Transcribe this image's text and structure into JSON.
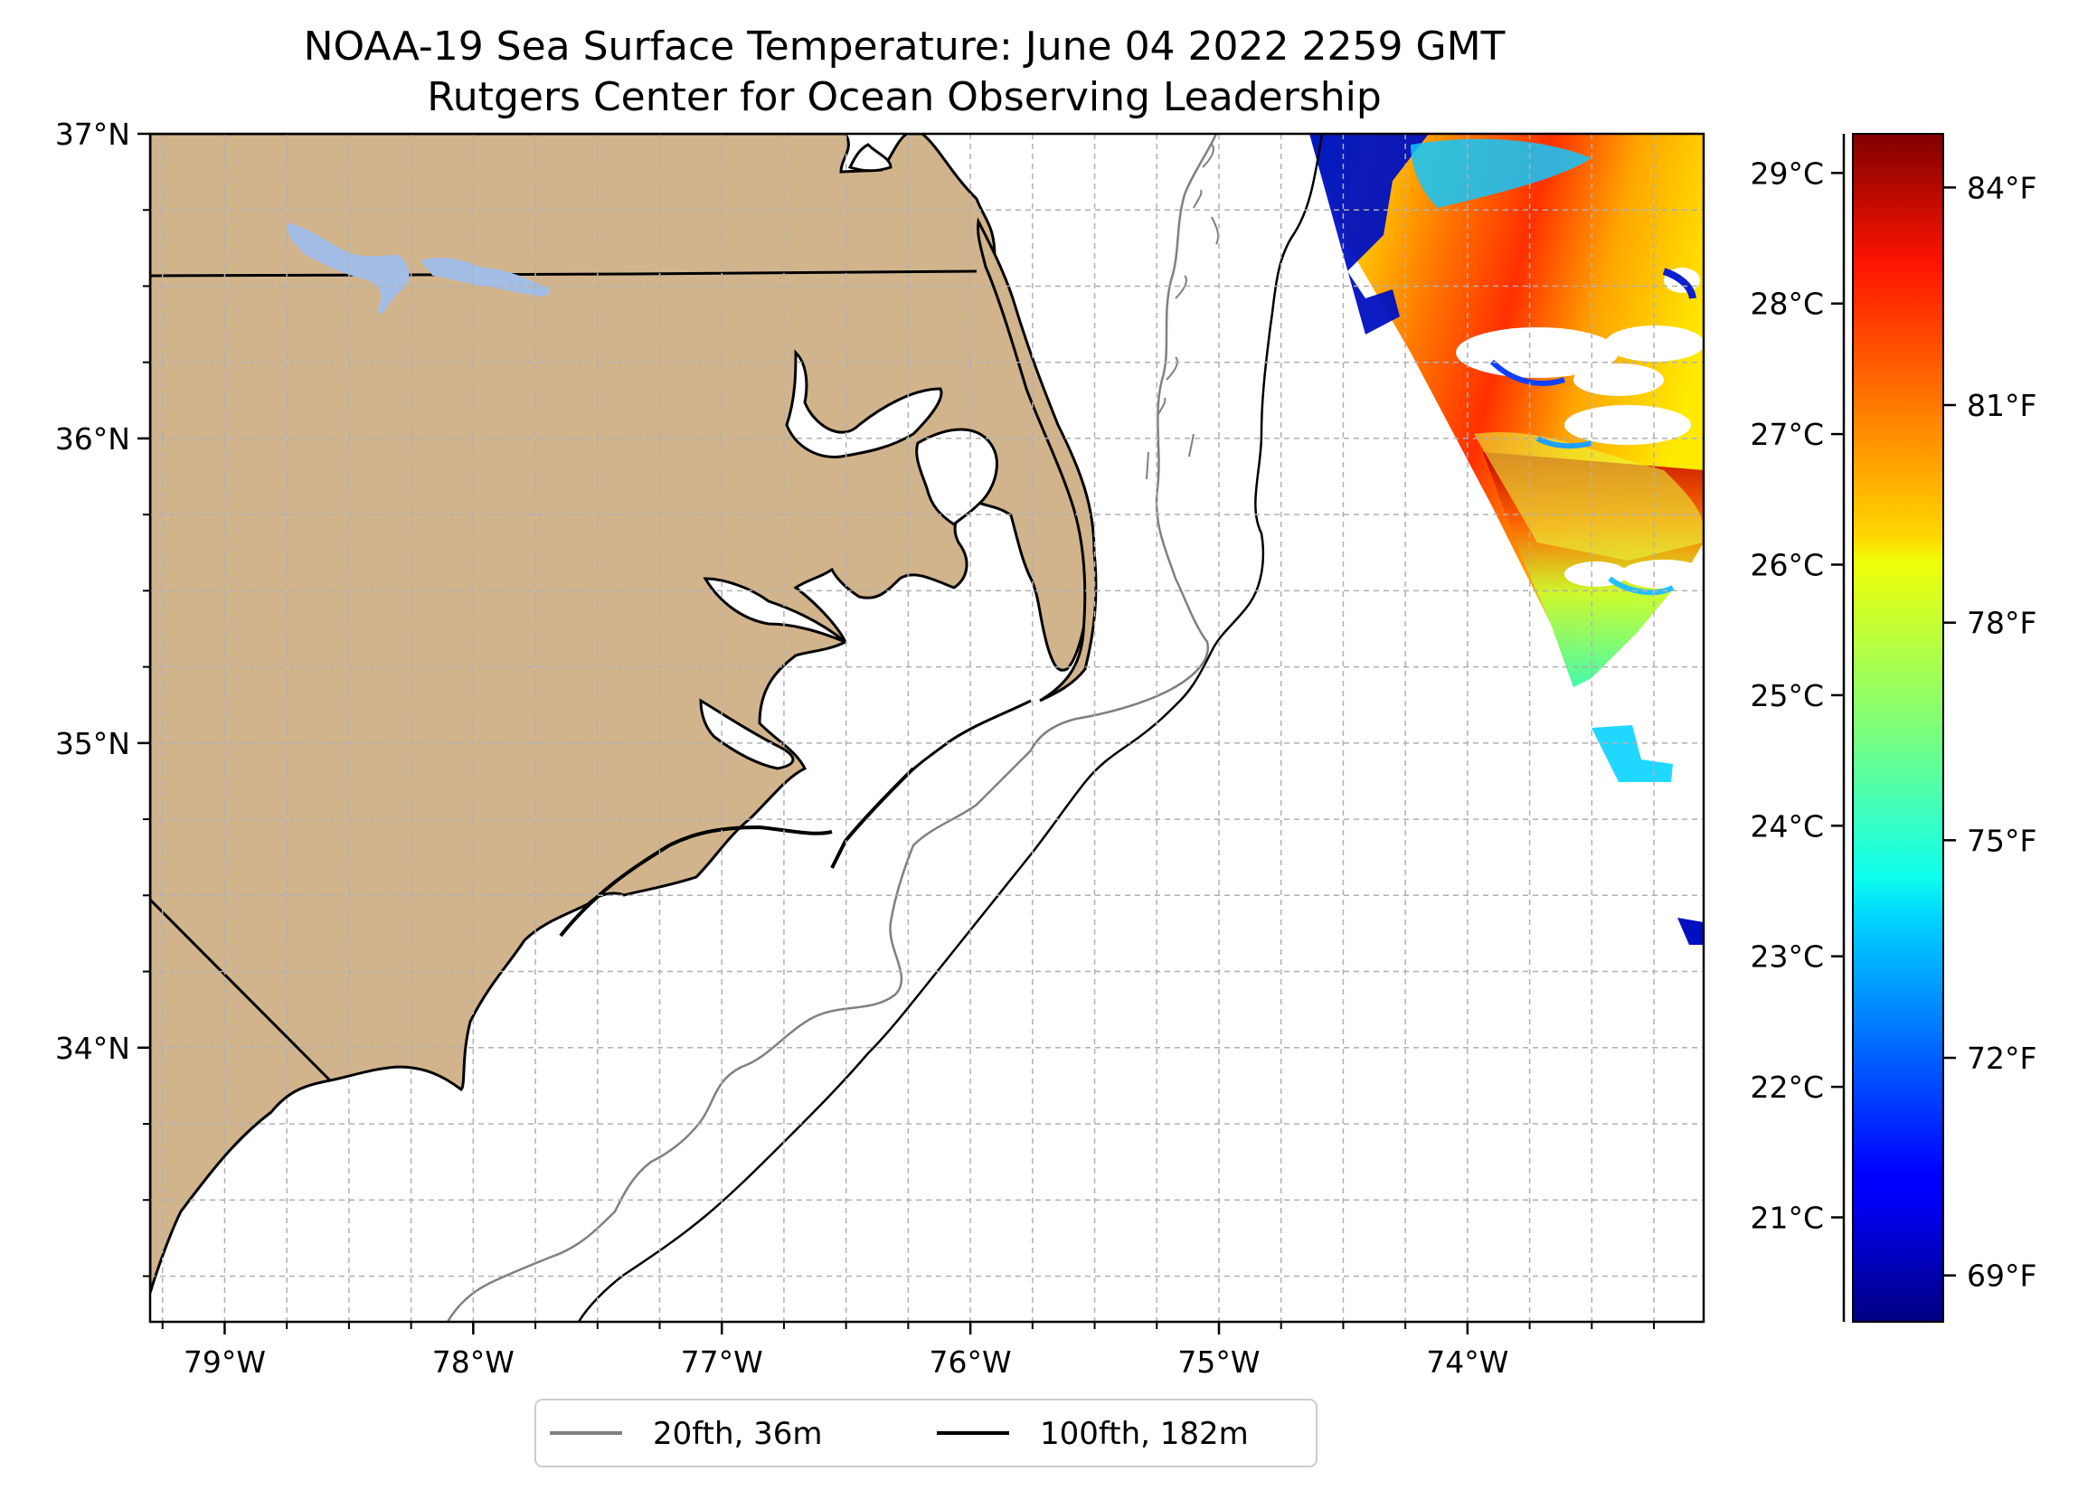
{
  "title": {
    "line1": "NOAA-19 Sea Surface Temperature: June 04 2022 2259 GMT",
    "line2": "Rutgers Center for Ocean Observing Leadership"
  },
  "map": {
    "lon_range": [
      -79.3,
      -73.05
    ],
    "lat_range": [
      33.1,
      37.0
    ],
    "lon_ticks": [
      {
        "value": -79,
        "label": "79°W"
      },
      {
        "value": -78,
        "label": "78°W"
      },
      {
        "value": -77,
        "label": "77°W"
      },
      {
        "value": -76,
        "label": "76°W"
      },
      {
        "value": -75,
        "label": "75°W"
      },
      {
        "value": -74,
        "label": "74°W"
      }
    ],
    "lat_ticks": [
      {
        "value": 37,
        "label": "37°N"
      },
      {
        "value": 36,
        "label": "36°N"
      },
      {
        "value": 35,
        "label": "35°N"
      },
      {
        "value": 34,
        "label": "34°N"
      }
    ],
    "grid": true,
    "land_color": "#d2b48c",
    "lake_color": "#a4bde6"
  },
  "legend": {
    "placement": "bottom-center",
    "items": [
      {
        "label": "20fth, 36m",
        "color": "#808080"
      },
      {
        "label": "100fth, 182m",
        "color": "#000000"
      }
    ]
  },
  "colorbar": {
    "colormap": "jet",
    "range_c": [
      20.2,
      29.3
    ],
    "celsius_ticks": [
      {
        "value": 29,
        "label": "29°C"
      },
      {
        "value": 28,
        "label": "28°C"
      },
      {
        "value": 27,
        "label": "27°C"
      },
      {
        "value": 26,
        "label": "26°C"
      },
      {
        "value": 25,
        "label": "25°C"
      },
      {
        "value": 24,
        "label": "24°C"
      },
      {
        "value": 23,
        "label": "23°C"
      },
      {
        "value": 22,
        "label": "22°C"
      },
      {
        "value": 21,
        "label": "21°C"
      }
    ],
    "fahrenheit_ticks": [
      {
        "value": 84,
        "label": "84°F"
      },
      {
        "value": 81,
        "label": "81°F"
      },
      {
        "value": 78,
        "label": "78°F"
      },
      {
        "value": 75,
        "label": "75°F"
      },
      {
        "value": 72,
        "label": "72°F"
      },
      {
        "value": 69,
        "label": "69°F"
      }
    ]
  }
}
